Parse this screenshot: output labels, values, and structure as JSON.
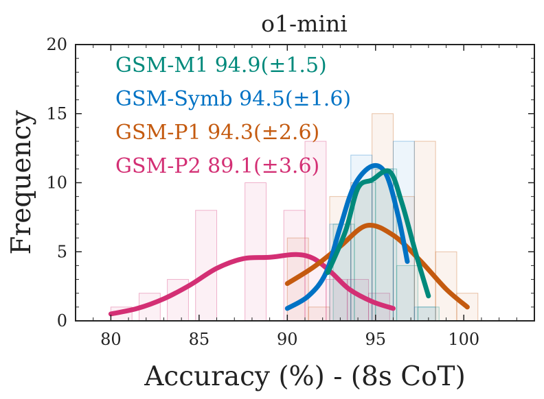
{
  "chart_data": {
    "type": "histogram",
    "title": "o1-mini",
    "xlabel": "Accuracy (%) - (8s CoT)",
    "ylabel": "Frequency",
    "xlim": [
      78,
      104
    ],
    "ylim": [
      0,
      20
    ],
    "xticks": [
      80,
      85,
      90,
      95,
      100
    ],
    "yticks": [
      0,
      5,
      10,
      15,
      20
    ],
    "legend_placement": "top-left",
    "grid": false,
    "series": [
      {
        "name": "GSM-M1 94.9(±1.5)",
        "color": "#00897b",
        "bins": [
          {
            "x0": 92.6,
            "x1": 93.8,
            "count": 7
          },
          {
            "x0": 93.8,
            "x1": 95.0,
            "count": 10
          },
          {
            "x0": 95.0,
            "x1": 96.2,
            "count": 11
          },
          {
            "x0": 96.2,
            "x1": 97.4,
            "count": 4
          },
          {
            "x0": 97.4,
            "x1": 98.6,
            "count": 1
          }
        ],
        "curve": [
          [
            92.3,
            3.5
          ],
          [
            93.3,
            6.5
          ],
          [
            94.0,
            9.6
          ],
          [
            94.8,
            10.2
          ],
          [
            95.8,
            10.8
          ],
          [
            96.5,
            8.5
          ],
          [
            97.3,
            4.8
          ],
          [
            98.0,
            1.8
          ]
        ]
      },
      {
        "name": "GSM-Symb 94.5(±1.6)",
        "color": "#0072c4",
        "bins": [
          {
            "x0": 92.4,
            "x1": 93.6,
            "count": 7
          },
          {
            "x0": 93.6,
            "x1": 94.8,
            "count": 12
          },
          {
            "x0": 94.8,
            "x1": 96.0,
            "count": 11
          },
          {
            "x0": 96.0,
            "x1": 97.2,
            "count": 13
          },
          {
            "x0": 97.2,
            "x1": 98.4,
            "count": 1
          }
        ],
        "curve": [
          [
            90.0,
            0.9
          ],
          [
            91.2,
            1.8
          ],
          [
            92.2,
            3.5
          ],
          [
            93.0,
            6.8
          ],
          [
            93.8,
            9.8
          ],
          [
            94.8,
            11.2
          ],
          [
            95.6,
            10.6
          ],
          [
            96.3,
            7.5
          ],
          [
            96.8,
            4.3
          ]
        ]
      },
      {
        "name": "GSM-P1 94.3(±2.6)",
        "color": "#c45a0f",
        "bins": [
          {
            "x0": 90.0,
            "x1": 91.2,
            "count": 6
          },
          {
            "x0": 91.2,
            "x1": 92.4,
            "count": 1
          },
          {
            "x0": 92.4,
            "x1": 93.6,
            "count": 9
          },
          {
            "x0": 93.6,
            "x1": 94.8,
            "count": 10
          },
          {
            "x0": 94.8,
            "x1": 96.0,
            "count": 15
          },
          {
            "x0": 96.0,
            "x1": 97.2,
            "count": 9
          },
          {
            "x0": 97.2,
            "x1": 98.4,
            "count": 13
          },
          {
            "x0": 98.4,
            "x1": 99.6,
            "count": 5
          },
          {
            "x0": 99.6,
            "x1": 100.8,
            "count": 2
          }
        ],
        "curve": [
          [
            90.0,
            2.7
          ],
          [
            91.5,
            3.9
          ],
          [
            93.0,
            5.4
          ],
          [
            94.5,
            6.9
          ],
          [
            96.0,
            6.2
          ],
          [
            97.5,
            4.4
          ],
          [
            99.0,
            2.3
          ],
          [
            100.2,
            1.0
          ]
        ]
      },
      {
        "name": "GSM-P2 89.1(±3.6)",
        "color": "#d32f74",
        "bins": [
          {
            "x0": 80.0,
            "x1": 81.2,
            "count": 1
          },
          {
            "x0": 81.6,
            "x1": 82.8,
            "count": 2
          },
          {
            "x0": 83.2,
            "x1": 84.4,
            "count": 3
          },
          {
            "x0": 84.8,
            "x1": 86.0,
            "count": 8
          },
          {
            "x0": 87.6,
            "x1": 88.8,
            "count": 10
          },
          {
            "x0": 89.8,
            "x1": 91.0,
            "count": 8
          },
          {
            "x0": 91.0,
            "x1": 92.2,
            "count": 13
          },
          {
            "x0": 92.2,
            "x1": 93.4,
            "count": 3
          },
          {
            "x0": 93.4,
            "x1": 94.6,
            "count": 3
          },
          {
            "x0": 94.6,
            "x1": 95.8,
            "count": 2
          }
        ],
        "curve": [
          [
            80.0,
            0.5
          ],
          [
            81.5,
            0.9
          ],
          [
            83.0,
            1.6
          ],
          [
            84.5,
            2.6
          ],
          [
            86.0,
            3.8
          ],
          [
            87.5,
            4.5
          ],
          [
            89.0,
            4.6
          ],
          [
            90.5,
            4.8
          ],
          [
            91.5,
            4.5
          ],
          [
            92.5,
            3.5
          ],
          [
            93.5,
            2.3
          ],
          [
            94.8,
            1.4
          ],
          [
            96.0,
            0.9
          ]
        ]
      }
    ]
  }
}
